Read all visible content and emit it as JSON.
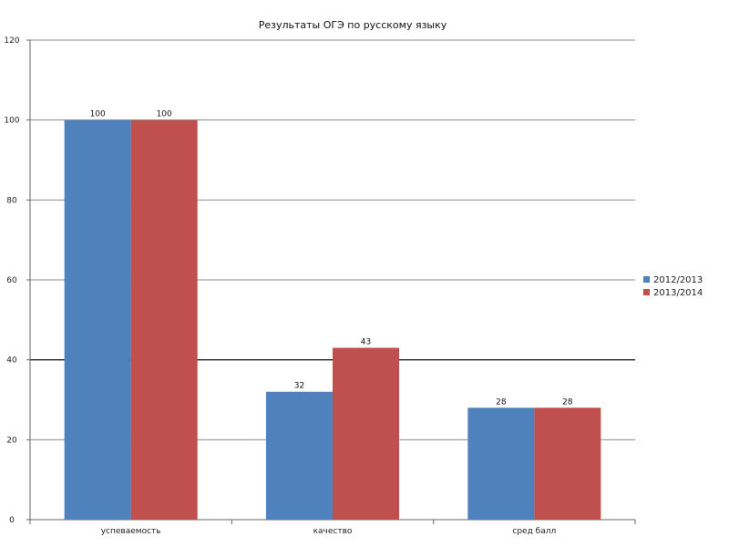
{
  "chart_data": {
    "type": "bar",
    "title": "Результаты ОГЭ по русскому языку",
    "xlabel": "",
    "ylabel": "",
    "categories": [
      "успеваемость",
      "качество",
      "сред балл"
    ],
    "series": [
      {
        "name": "2012/2013",
        "color": "#4f81bd",
        "values": [
          100,
          32,
          28
        ]
      },
      {
        "name": "2013/2014",
        "color": "#c0504d",
        "values": [
          100,
          43,
          28
        ]
      }
    ],
    "ylim": [
      0,
      120
    ],
    "yticks": [
      0,
      20,
      40,
      60,
      80,
      100,
      120
    ],
    "grid": true,
    "legend_position": "right"
  }
}
